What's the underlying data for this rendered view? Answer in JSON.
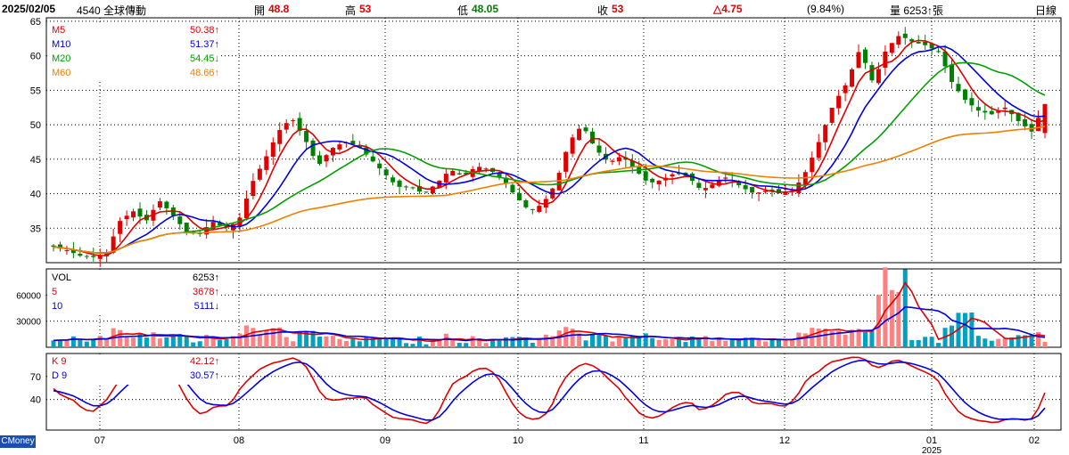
{
  "header": {
    "date": "2025/02/05",
    "stock": "4540 全球傳動",
    "open_label": "開",
    "open": "48.8",
    "high_label": "高",
    "high": "53",
    "low_label": "低",
    "low": "48.05",
    "close_label": "收",
    "close": "53",
    "change": "△4.75",
    "change_pct": "(9.84%)",
    "volume": "量 6253↑張",
    "period": "日線"
  },
  "brand": "CMoney",
  "colors": {
    "up": "#e00000",
    "down": "#008000",
    "ma5": "#e00000",
    "ma10": "#0000e0",
    "ma20": "#00a000",
    "ma60": "#f08000",
    "vol_up": "#ff8080",
    "vol_down": "#00a0c0",
    "k": "#e00000",
    "d": "#0000e0",
    "grid": "#000000"
  },
  "legends": {
    "price": [
      {
        "name": "M5",
        "value": "50.38↑",
        "color": "#e00000"
      },
      {
        "name": "M10",
        "value": "51.37↑",
        "color": "#0000e0"
      },
      {
        "name": "M20",
        "value": "54.45↓",
        "color": "#00a000"
      },
      {
        "name": "M60",
        "value": "48.66↑",
        "color": "#f08000"
      }
    ],
    "volume": [
      {
        "name": "VOL",
        "value": "6253↑",
        "color": "#000000"
      },
      {
        "name": "5",
        "value": "3678↑",
        "color": "#e00000"
      },
      {
        "name": "10",
        "value": "5111↓",
        "color": "#0000e0"
      }
    ],
    "kd": [
      {
        "name": "K 9",
        "value": "42.12↑",
        "color": "#e00000"
      },
      {
        "name": "D 9",
        "value": "30.57↑",
        "color": "#0000e0"
      }
    ]
  },
  "chart_data": [
    {
      "type": "candlestick",
      "y_ticks": [
        "35",
        "40",
        "45",
        "50",
        "55",
        "60",
        "65"
      ],
      "ylim": [
        30,
        65.5
      ],
      "x_ticks": [
        "07",
        "08",
        "09",
        "10",
        "11",
        "12",
        "01",
        "02"
      ],
      "x_sublabel": "2025",
      "ohlc_anchors": [
        [
          32.5,
          33,
          31.8,
          32.3
        ],
        [
          32,
          32.5,
          31.5,
          31.8
        ],
        [
          31.5,
          32,
          30.5,
          31
        ],
        [
          31,
          31.2,
          30.5,
          30.8
        ],
        [
          31,
          31.5,
          30.3,
          31.3
        ],
        [
          33,
          36.5,
          32.8,
          36
        ],
        [
          37,
          38.5,
          36,
          37.5
        ],
        [
          36.5,
          37,
          35.8,
          36
        ],
        [
          38,
          39.5,
          37,
          39
        ],
        [
          37.5,
          38.5,
          36.5,
          37
        ],
        [
          36,
          36.5,
          34,
          34.5
        ],
        [
          35,
          36,
          33.5,
          34
        ],
        [
          35,
          36.2,
          34.5,
          36
        ],
        [
          36,
          37.5,
          34,
          35
        ],
        [
          37,
          38.5,
          35,
          36
        ],
        [
          38,
          42,
          37.5,
          41.5
        ],
        [
          44,
          46,
          43,
          45
        ],
        [
          46,
          50,
          45,
          49
        ],
        [
          50,
          52.5,
          49,
          51
        ],
        [
          49,
          50,
          47,
          48
        ],
        [
          46,
          47,
          43,
          44
        ],
        [
          44,
          47,
          43.5,
          46.5
        ],
        [
          46,
          48,
          45,
          47.5
        ],
        [
          47.5,
          51,
          46.5,
          47
        ],
        [
          46,
          47,
          44,
          45
        ],
        [
          44,
          45,
          42,
          43
        ],
        [
          43,
          44,
          40,
          41
        ],
        [
          42,
          43,
          40,
          41
        ],
        [
          41,
          42,
          39,
          40
        ],
        [
          40,
          42,
          39.5,
          41.5
        ],
        [
          42,
          44,
          41,
          43.5
        ],
        [
          43,
          44,
          42,
          42.5
        ],
        [
          43,
          44.5,
          42.5,
          44
        ],
        [
          44,
          45,
          43,
          43.5
        ],
        [
          43,
          44,
          42,
          42
        ],
        [
          42,
          43,
          39,
          39.5
        ],
        [
          39,
          40,
          37,
          37.5
        ],
        [
          38,
          39,
          37,
          38.5
        ],
        [
          39,
          42,
          38.5,
          41.5
        ],
        [
          44,
          48,
          43,
          47.5
        ],
        [
          49,
          51,
          48,
          50
        ],
        [
          48.5,
          49.5,
          46,
          46.5
        ],
        [
          46,
          47,
          44,
          44.5
        ],
        [
          44,
          46,
          43.5,
          45.5
        ],
        [
          45,
          46,
          43,
          43.5
        ],
        [
          43,
          44,
          41,
          41.5
        ],
        [
          42,
          43,
          40.5,
          42
        ],
        [
          42,
          44,
          41.5,
          43
        ],
        [
          43,
          44,
          42,
          42.5
        ],
        [
          42,
          43,
          40,
          40.5
        ],
        [
          40,
          42,
          39.5,
          41.5
        ],
        [
          41,
          43,
          40.5,
          42.5
        ],
        [
          42,
          43,
          40.5,
          41
        ],
        [
          40.5,
          42,
          39.5,
          40
        ],
        [
          40,
          41,
          39.5,
          40.5
        ],
        [
          39.5,
          41,
          39,
          40
        ],
        [
          40,
          41,
          39.5,
          40.5
        ],
        [
          41,
          44,
          40.5,
          43.5
        ],
        [
          44,
          49,
          43.5,
          48
        ],
        [
          50,
          54,
          49,
          53
        ],
        [
          54,
          57,
          52,
          56
        ],
        [
          60,
          62,
          56,
          61
        ],
        [
          57,
          59,
          55,
          56
        ],
        [
          60,
          62,
          58,
          61
        ],
        [
          62,
          64,
          61,
          63
        ],
        [
          63,
          65,
          61,
          62
        ],
        [
          61,
          63,
          59,
          61.5
        ],
        [
          61.5,
          65,
          60,
          60.5
        ],
        [
          58,
          60,
          55,
          56
        ],
        [
          55,
          57,
          53,
          53.5
        ],
        [
          53,
          54,
          51,
          52
        ],
        [
          52,
          53,
          51,
          51.5
        ],
        [
          51,
          53,
          50,
          52.5
        ],
        [
          52,
          53,
          50,
          50.5
        ],
        [
          50,
          52,
          48,
          49
        ],
        [
          48.8,
          53,
          48.05,
          53
        ]
      ],
      "ma_series_note": "M5, M10, M20, M60 lines",
      "vol_ylim": [
        0,
        90000
      ],
      "vol_ticks": [
        "30000",
        "60000"
      ],
      "kd_ticks": [
        "40",
        "70"
      ],
      "kd_ylim": [
        0,
        100
      ]
    }
  ]
}
